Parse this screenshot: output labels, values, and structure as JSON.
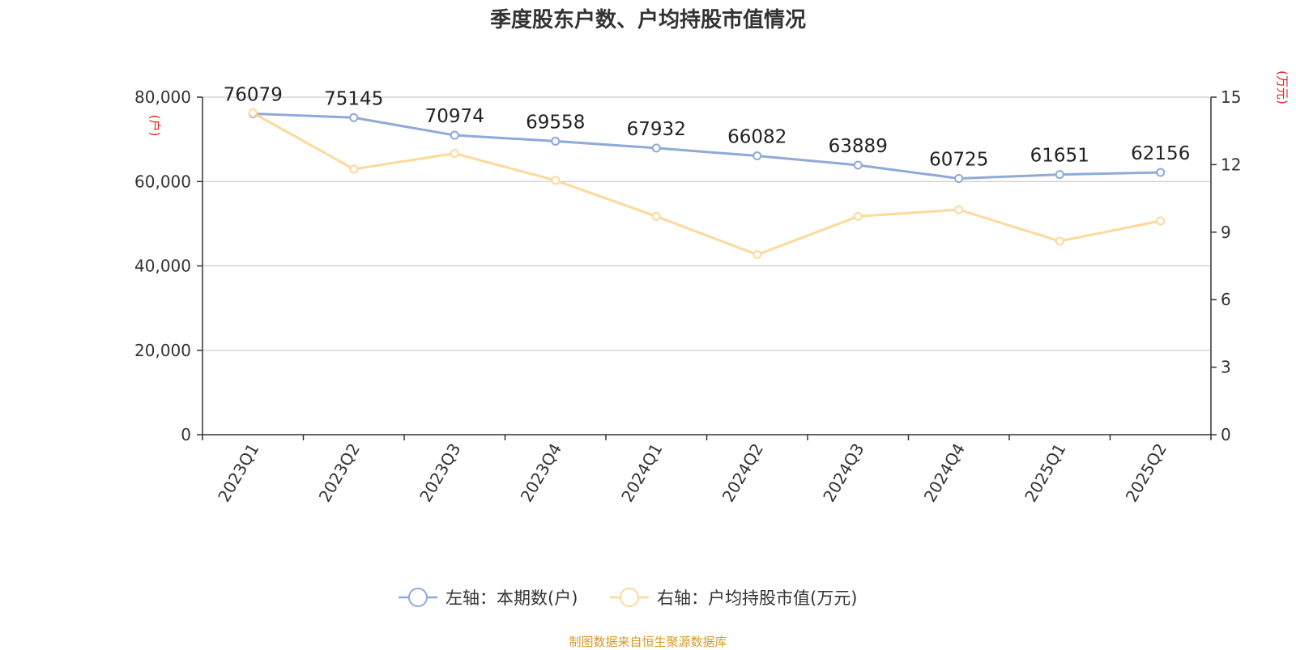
{
  "title": "季度股东户数、户均持股市值情况",
  "source": "制图数据来自恒生聚源数据库",
  "chart_data": {
    "type": "line",
    "categories": [
      "2023Q1",
      "2023Q2",
      "2023Q3",
      "2023Q4",
      "2024Q1",
      "2024Q2",
      "2024Q3",
      "2024Q4",
      "2025Q1",
      "2025Q2"
    ],
    "series": [
      {
        "name": "左轴：本期数(户)",
        "axis": "left",
        "color": "#8eaad8",
        "values": [
          76079,
          75145,
          70974,
          69558,
          67932,
          66082,
          63889,
          60725,
          61651,
          62156
        ],
        "show_labels": true
      },
      {
        "name": "右轴：户均持股市值(万元)",
        "axis": "right",
        "color": "#fdd99a",
        "values": [
          14.3,
          11.8,
          12.5,
          11.3,
          9.7,
          8.0,
          9.7,
          10.0,
          8.6,
          9.5
        ],
        "show_labels": false
      }
    ],
    "y_left": {
      "unit": "(户)",
      "ylim": [
        0,
        80000
      ],
      "ticks": [
        0,
        20000,
        40000,
        60000,
        80000
      ],
      "tick_labels": [
        "0",
        "20,000",
        "40,000",
        "60,000",
        "80,000"
      ]
    },
    "y_right": {
      "unit": "(万元)",
      "ylim": [
        0,
        15
      ],
      "ticks": [
        0,
        3,
        6,
        9,
        12,
        15
      ],
      "tick_labels": [
        "0",
        "3",
        "6",
        "9",
        "12",
        "15"
      ]
    },
    "grid": true,
    "legend": "bottom-center",
    "colors": {
      "axis": "#333333",
      "grid": "#cccccc",
      "unit": "#e0201b",
      "source": "#d49a2e"
    }
  }
}
